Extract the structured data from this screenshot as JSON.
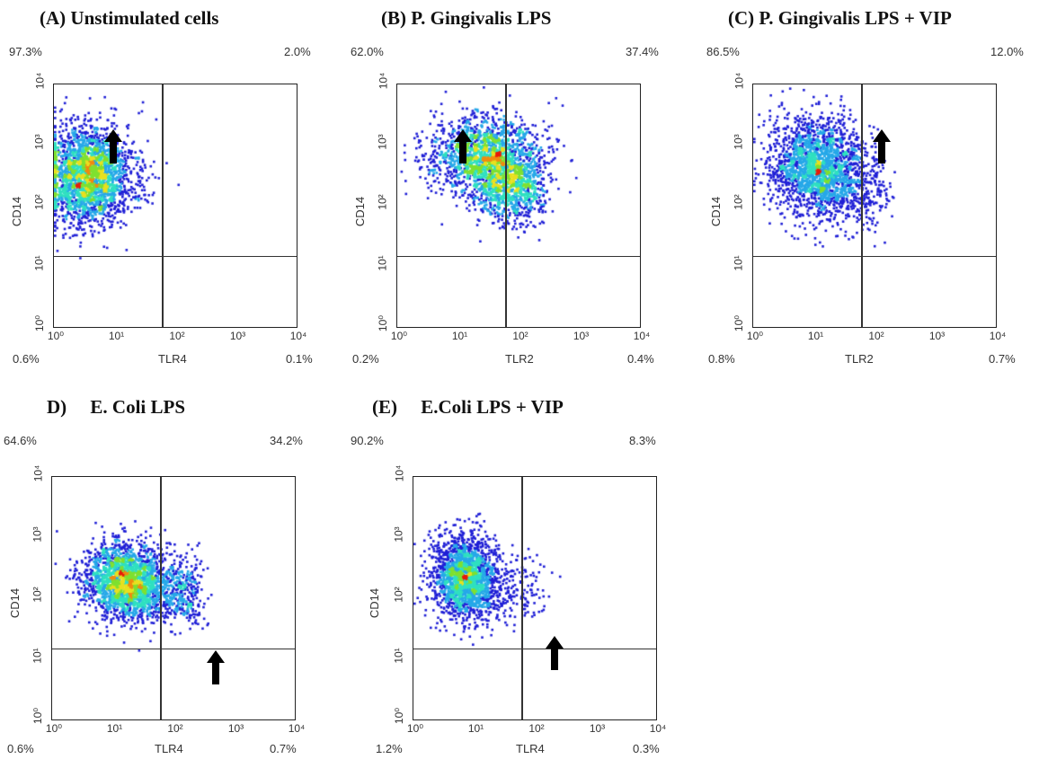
{
  "chart_data": [
    {
      "type": "scatter",
      "title": "(A) Unstimulated cells",
      "xlabel": "TLR4",
      "ylabel": "CD14",
      "quadrants": {
        "upper_left": "97.3%",
        "upper_right": "2.0%",
        "lower_left": "0.6%",
        "lower_right": "0.1%"
      },
      "xlim": [
        1,
        10000
      ],
      "ylim": [
        1,
        10000
      ],
      "xticks": [
        "10⁰",
        "10¹",
        "10²",
        "10³",
        "10⁴"
      ],
      "yticks": [
        "10⁰",
        "10¹",
        "10²",
        "10³",
        "10⁴"
      ],
      "log_scale": true,
      "population_center": [
        3.5,
        400
      ]
    },
    {
      "type": "scatter",
      "title": "(B) P. Gingivalis LPS",
      "xlabel": "TLR2",
      "ylabel": "CD14",
      "quadrants": {
        "upper_left": "62.0%",
        "upper_right": "37.4%",
        "lower_left": "0.2%",
        "lower_right": "0.4%"
      },
      "xlim": [
        1,
        10000
      ],
      "ylim": [
        1,
        10000
      ],
      "xticks": [
        "10⁰",
        "10¹",
        "10²",
        "10³",
        "10⁴"
      ],
      "yticks": [
        "10⁰",
        "10¹",
        "10²",
        "10³",
        "10⁴"
      ],
      "log_scale": true,
      "population_center": [
        30,
        800
      ]
    },
    {
      "type": "scatter",
      "title": "(C) P. Gingivalis  LPS + VIP",
      "xlabel": "TLR2",
      "ylabel": "CD14",
      "quadrants": {
        "upper_left": "86.5%",
        "upper_right": "12.0%",
        "lower_left": "0.8%",
        "lower_right": "0.7%"
      },
      "xlim": [
        1,
        10000
      ],
      "ylim": [
        1,
        10000
      ],
      "xticks": [
        "10⁰",
        "10¹",
        "10²",
        "10³",
        "10⁴"
      ],
      "yticks": [
        "10⁰",
        "10¹",
        "10²",
        "10³",
        "10⁴"
      ],
      "log_scale": true,
      "population_center": [
        12,
        600
      ]
    },
    {
      "type": "scatter",
      "title": "D)     E. Coli LPS",
      "xlabel": "TLR4",
      "ylabel": "CD14",
      "quadrants": {
        "upper_left": "64.6%",
        "upper_right": "34.2%",
        "lower_left": "0.6%",
        "lower_right": "0.7%"
      },
      "xlim": [
        1,
        10000
      ],
      "ylim": [
        1,
        10000
      ],
      "xticks": [
        "10⁰",
        "10¹",
        "10²",
        "10³",
        "10⁴"
      ],
      "yticks": [
        "10⁰",
        "10¹",
        "10²",
        "10³",
        "10⁴"
      ],
      "log_scale": true,
      "population_center": [
        15,
        250
      ]
    },
    {
      "type": "scatter",
      "title": "(E)     E.Coli LPS + VIP",
      "xlabel": "TLR4",
      "ylabel": "CD14",
      "quadrants": {
        "upper_left": "90.2%",
        "upper_right": "8.3%",
        "lower_left": "1.2%",
        "lower_right": "0.3%"
      },
      "xlim": [
        1,
        10000
      ],
      "ylim": [
        1,
        10000
      ],
      "xticks": [
        "10⁰",
        "10¹",
        "10²",
        "10³",
        "10⁴"
      ],
      "yticks": [
        "10⁰",
        "10¹",
        "10²",
        "10³",
        "10⁴"
      ],
      "log_scale": true,
      "population_center": [
        7,
        300
      ]
    }
  ],
  "quadrant_gate": {
    "x": 60,
    "y": 15
  },
  "colors": {
    "low": "#1f1fd6",
    "mid": "#2fe0c0",
    "high": "#e81a0a",
    "frame": "#222222"
  }
}
